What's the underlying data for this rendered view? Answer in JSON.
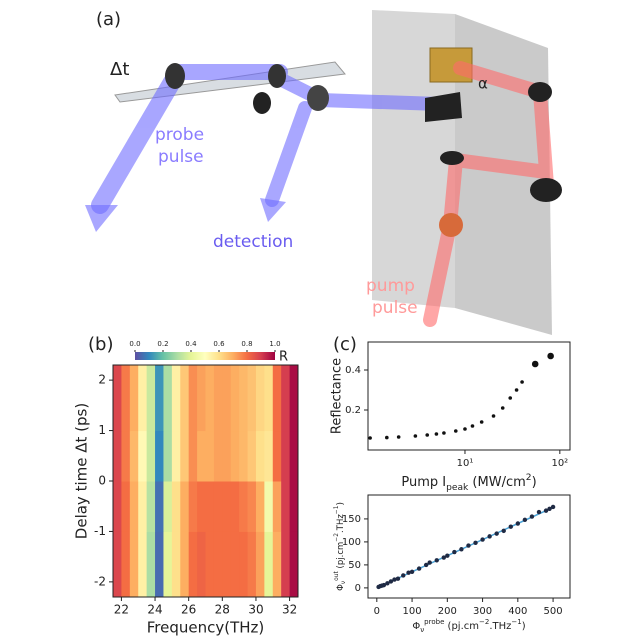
{
  "diagram": {
    "panel_label": "(a)",
    "delay_label": "Δt",
    "angle_label": "α",
    "probe_label": [
      "probe",
      "pulse"
    ],
    "detection_label": "detection",
    "pump_label": [
      "pump",
      "pulse"
    ]
  },
  "chart_data": [
    {
      "type": "heatmap",
      "panel_label": "(b)",
      "colormap": "Spectral_r",
      "xlabel": "Frequency(THz)",
      "ylabel": "Delay time Δt (ps)",
      "x_edges": [
        21.5,
        22,
        22.5,
        23,
        23.5,
        24,
        24.5,
        25,
        25.5,
        26,
        26.5,
        27,
        27.5,
        28,
        28.5,
        29,
        29.5,
        30,
        30.5,
        31,
        31.5,
        32,
        32.5
      ],
      "y_edges": [
        -2.3,
        -1,
        0,
        1,
        2.3
      ],
      "z": [
        [
          0.88,
          0.8,
          0.7,
          0.55,
          0.3,
          0.05,
          0.4,
          0.6,
          0.7,
          0.8,
          0.82,
          0.8,
          0.8,
          0.8,
          0.8,
          0.8,
          0.78,
          0.72,
          0.4,
          0.7,
          0.9,
          0.98
        ],
        [
          0.88,
          0.8,
          0.7,
          0.55,
          0.32,
          0.06,
          0.38,
          0.6,
          0.7,
          0.78,
          0.8,
          0.8,
          0.8,
          0.8,
          0.8,
          0.78,
          0.76,
          0.7,
          0.45,
          0.72,
          0.9,
          0.98
        ],
        [
          0.88,
          0.78,
          0.68,
          0.52,
          0.35,
          0.1,
          0.3,
          0.55,
          0.65,
          0.75,
          0.7,
          0.7,
          0.72,
          0.72,
          0.7,
          0.68,
          0.65,
          0.6,
          0.58,
          0.8,
          0.9,
          0.98
        ],
        [
          0.88,
          0.78,
          0.7,
          0.55,
          0.35,
          0.12,
          0.3,
          0.55,
          0.65,
          0.75,
          0.72,
          0.7,
          0.72,
          0.72,
          0.7,
          0.68,
          0.66,
          0.62,
          0.6,
          0.8,
          0.9,
          0.98
        ]
      ],
      "xlim": [
        21.5,
        32.5
      ],
      "ylim": [
        -2.3,
        2.3
      ],
      "xticks": [
        22,
        24,
        26,
        28,
        30,
        32
      ],
      "yticks": [
        -2,
        -1,
        0,
        1,
        2
      ],
      "zlim": [
        0,
        1
      ],
      "cbar_ticks": [
        {
          "value": 0,
          "label": "0.0"
        },
        {
          "value": 0.2,
          "label": "0.2"
        },
        {
          "value": 0.4,
          "label": "0.4"
        },
        {
          "value": 0.6,
          "label": "0.6"
        },
        {
          "value": 0.8,
          "label": "0.8"
        },
        {
          "value": 1,
          "label": "1.0"
        }
      ],
      "cbar_label": "R"
    },
    {
      "type": "scatter",
      "panel_label": "(c)",
      "xscale": "log",
      "color": "#111111",
      "marker_size": 1.8,
      "ylabel": "Reflectance",
      "xlabel_parts": [
        {
          "text": "Pump I"
        },
        {
          "text": "peak",
          "shift": "sub"
        },
        {
          "text": " (MW/cm"
        },
        {
          "text": "2",
          "shift": "sup"
        },
        {
          "text": ")"
        }
      ],
      "x": [
        1,
        1.5,
        2,
        3,
        4,
        5,
        6,
        8,
        10,
        12,
        15,
        20,
        25,
        30,
        35,
        40
      ],
      "values": [
        0.06,
        0.062,
        0.065,
        0.07,
        0.075,
        0.08,
        0.085,
        0.095,
        0.105,
        0.12,
        0.14,
        0.17,
        0.21,
        0.26,
        0.3,
        0.34
      ],
      "x_big": [
        55,
        80
      ],
      "values_big": [
        0.43,
        0.47
      ],
      "xlim": [
        0.95,
        128
      ],
      "ylim": [
        0,
        0.54
      ],
      "xticks": [
        {
          "value": 10,
          "label": "10¹"
        },
        {
          "value": 100,
          "label": "10²"
        }
      ],
      "yticks": [
        0.2,
        0.4
      ]
    },
    {
      "type": "scatter",
      "color": "#1f2a44",
      "marker_size": 2.2,
      "xlabel_parts": [
        {
          "text": "Φ"
        },
        {
          "text": "ν",
          "shift": "sub"
        },
        {
          "text": "probe",
          "shift": "sup"
        },
        {
          "text": " (pj.cm"
        },
        {
          "text": "−2",
          "shift": "sup"
        },
        {
          "text": ".THz"
        },
        {
          "text": "−1",
          "shift": "sup"
        },
        {
          "text": ")"
        }
      ],
      "ylabel_parts": [
        {
          "text": "Φ"
        },
        {
          "text": "ν",
          "shift": "sub"
        },
        {
          "text": "out",
          "shift": "sup"
        },
        {
          "text": " (pj.cm"
        },
        {
          "text": "−2",
          "shift": "sup"
        },
        {
          "text": ".THz"
        },
        {
          "text": "−1",
          "shift": "sup"
        },
        {
          "text": ")"
        }
      ],
      "x": [
        5,
        10,
        15,
        20,
        30,
        40,
        50,
        60,
        75,
        90,
        100,
        120,
        140,
        150,
        170,
        190,
        200,
        220,
        240,
        260,
        280,
        300,
        320,
        340,
        360,
        380,
        400,
        420,
        440,
        460,
        480,
        490,
        500
      ],
      "values": [
        2,
        4,
        5,
        6,
        10,
        14,
        18,
        20,
        27,
        33,
        35,
        42,
        50,
        55,
        60,
        66,
        70,
        78,
        84,
        92,
        98,
        105,
        112,
        118,
        124,
        133,
        140,
        148,
        155,
        165,
        168,
        172,
        176
      ],
      "fit": {
        "x": [
          0,
          500
        ],
        "values": [
          0,
          175
        ],
        "color": "#4aa3d8"
      },
      "xlim": [
        -25,
        548
      ],
      "ylim": [
        -22,
        202
      ],
      "xticks": [
        0,
        100,
        200,
        300,
        400,
        500
      ],
      "yticks": [
        0,
        50,
        100,
        150
      ]
    }
  ]
}
